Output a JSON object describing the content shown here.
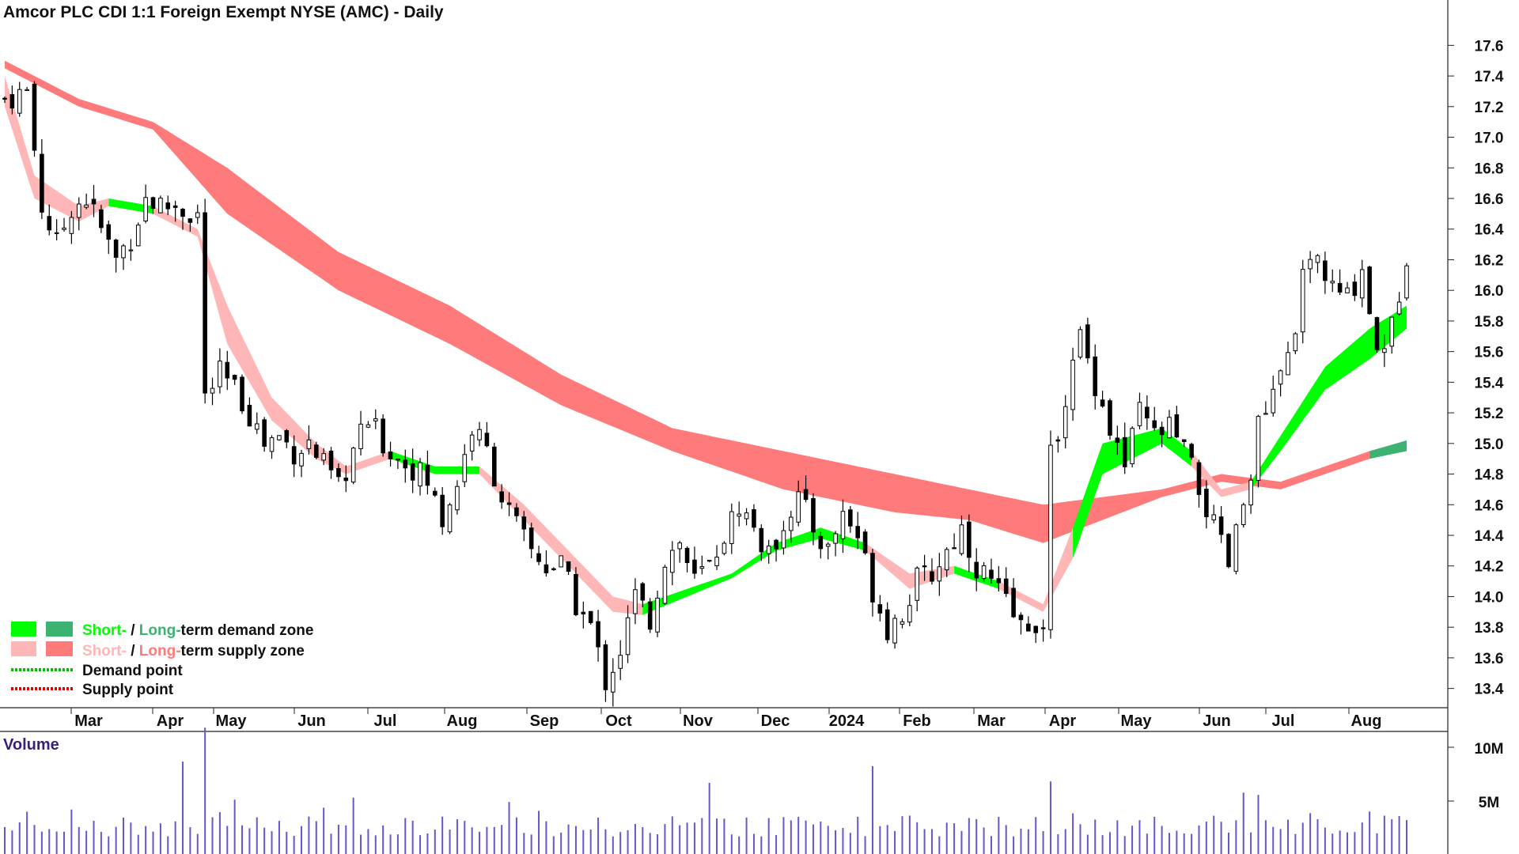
{
  "chart_data": {
    "type": "candlestick",
    "title": "Amcor PLC CDI 1:1 Foreign Exempt NYSE (AMC) - Daily",
    "price_axis": {
      "ticks": [
        "17.6",
        "17.4",
        "17.2",
        "17.0",
        "16.8",
        "16.6",
        "16.4",
        "16.2",
        "16.0",
        "15.8",
        "15.6",
        "15.4",
        "15.2",
        "15.0",
        "14.8",
        "14.6",
        "14.4",
        "14.2",
        "14.0",
        "13.8",
        "13.6",
        "13.4"
      ],
      "range": [
        13.3,
        17.7
      ]
    },
    "x_axis": {
      "labels": [
        "Mar",
        "Apr",
        "May",
        "Jun",
        "Jul",
        "Aug",
        "Sep",
        "Oct",
        "Nov",
        "Dec",
        "2024",
        "Feb",
        "Mar",
        "Apr",
        "May",
        "Jun",
        "Jul",
        "Aug"
      ]
    },
    "volume_axis": {
      "label": "Volume",
      "ticks": [
        "10M",
        "5M"
      ],
      "range": [
        0,
        11000000
      ]
    },
    "legend": [
      {
        "short": "Short-",
        "sep": " / ",
        "long": "Long-",
        "rest": "term demand zone",
        "short_color": "#00ff00",
        "long_color": "#3cb371"
      },
      {
        "short": "Short-",
        "sep": " / ",
        "long": "Long-",
        "rest": "term supply zone",
        "short_color": "#ffb6b6",
        "long_color": "#ff7a7a"
      },
      {
        "text": "Demand point",
        "color": "#00c000"
      },
      {
        "text": "Supply point",
        "color": "#e00000"
      }
    ],
    "close_path": [
      [
        0,
        17.25
      ],
      [
        3,
        17.3
      ],
      [
        5,
        16.55
      ],
      [
        7,
        16.3
      ],
      [
        9,
        16.55
      ],
      [
        11,
        16.6
      ],
      [
        13,
        16.4
      ],
      [
        15,
        16.2
      ],
      [
        17,
        16.35
      ],
      [
        19,
        16.6
      ],
      [
        21,
        16.55
      ],
      [
        23,
        16.55
      ],
      [
        25,
        16.5
      ],
      [
        26,
        16.5
      ],
      [
        27,
        15.3
      ],
      [
        29,
        15.45
      ],
      [
        31,
        15.35
      ],
      [
        33,
        15.2
      ],
      [
        35,
        15.0
      ],
      [
        37,
        15.05
      ],
      [
        39,
        14.95
      ],
      [
        41,
        15.0
      ],
      [
        43,
        14.85
      ],
      [
        45,
        14.7
      ],
      [
        47,
        14.95
      ],
      [
        49,
        15.15
      ],
      [
        51,
        15.0
      ],
      [
        53,
        14.9
      ],
      [
        55,
        14.85
      ],
      [
        57,
        14.75
      ],
      [
        59,
        14.5
      ],
      [
        61,
        14.75
      ],
      [
        63,
        15.1
      ],
      [
        65,
        14.95
      ],
      [
        67,
        14.65
      ],
      [
        69,
        14.45
      ],
      [
        71,
        14.3
      ],
      [
        73,
        14.2
      ],
      [
        75,
        14.2
      ],
      [
        77,
        13.95
      ],
      [
        79,
        13.8
      ],
      [
        81,
        13.45
      ],
      [
        83,
        13.65
      ],
      [
        85,
        14.0
      ],
      [
        87,
        13.85
      ],
      [
        89,
        14.25
      ],
      [
        91,
        14.35
      ],
      [
        93,
        14.1
      ],
      [
        95,
        14.2
      ],
      [
        97,
        14.4
      ],
      [
        99,
        14.6
      ],
      [
        101,
        14.45
      ],
      [
        103,
        14.25
      ],
      [
        105,
        14.5
      ],
      [
        107,
        14.65
      ],
      [
        109,
        14.45
      ],
      [
        111,
        14.3
      ],
      [
        113,
        14.55
      ],
      [
        115,
        14.4
      ],
      [
        117,
        14.05
      ],
      [
        119,
        13.8
      ],
      [
        121,
        13.9
      ],
      [
        123,
        14.1
      ],
      [
        125,
        14.15
      ],
      [
        127,
        14.3
      ],
      [
        129,
        14.45
      ],
      [
        131,
        14.2
      ],
      [
        133,
        14.1
      ],
      [
        135,
        13.95
      ],
      [
        137,
        13.8
      ],
      [
        139,
        13.85
      ],
      [
        140,
        13.75
      ],
      [
        141,
        14.9
      ],
      [
        143,
        15.3
      ],
      [
        145,
        15.7
      ],
      [
        147,
        15.4
      ],
      [
        149,
        15.1
      ],
      [
        151,
        14.85
      ],
      [
        153,
        15.2
      ],
      [
        155,
        15.05
      ],
      [
        157,
        15.1
      ],
      [
        159,
        14.95
      ],
      [
        161,
        14.7
      ],
      [
        163,
        14.45
      ],
      [
        165,
        14.2
      ],
      [
        167,
        14.6
      ],
      [
        169,
        15.1
      ],
      [
        171,
        15.3
      ],
      [
        173,
        15.55
      ],
      [
        175,
        16.05
      ],
      [
        177,
        16.2
      ],
      [
        179,
        16.0
      ],
      [
        181,
        15.95
      ],
      [
        183,
        16.15
      ],
      [
        185,
        15.6
      ],
      [
        187,
        15.75
      ],
      [
        189,
        16.25
      ]
    ],
    "short_term_zone_path": [
      [
        0,
        17.4,
        17.2,
        "supply"
      ],
      [
        4,
        16.75,
        16.6,
        "supply"
      ],
      [
        10,
        16.55,
        16.45,
        "supply"
      ],
      [
        14,
        16.6,
        16.55,
        "demand"
      ],
      [
        20,
        16.55,
        16.5,
        "supply"
      ],
      [
        26,
        16.4,
        16.35,
        "supply"
      ],
      [
        30,
        15.9,
        15.65,
        "supply"
      ],
      [
        36,
        15.3,
        15.15,
        "supply"
      ],
      [
        42,
        15.0,
        14.9,
        "supply"
      ],
      [
        46,
        14.85,
        14.8,
        "supply"
      ],
      [
        52,
        14.95,
        14.9,
        "demand"
      ],
      [
        58,
        14.85,
        14.8,
        "demand"
      ],
      [
        64,
        14.85,
        14.8,
        "supply"
      ],
      [
        70,
        14.6,
        14.5,
        "supply"
      ],
      [
        76,
        14.3,
        14.2,
        "supply"
      ],
      [
        82,
        14.0,
        13.9,
        "supply"
      ],
      [
        86,
        13.95,
        13.88,
        "demand"
      ],
      [
        92,
        14.05,
        14.0,
        "demand"
      ],
      [
        98,
        14.15,
        14.12,
        "demand"
      ],
      [
        104,
        14.35,
        14.3,
        "demand"
      ],
      [
        110,
        14.45,
        14.38,
        "demand"
      ],
      [
        116,
        14.35,
        14.3,
        "supply"
      ],
      [
        122,
        14.15,
        14.05,
        "supply"
      ],
      [
        128,
        14.2,
        14.15,
        "demand"
      ],
      [
        134,
        14.1,
        14.05,
        "supply"
      ],
      [
        140,
        13.95,
        13.9,
        "supply"
      ],
      [
        144,
        14.45,
        14.25,
        "demand"
      ],
      [
        148,
        15.0,
        14.8,
        "demand"
      ],
      [
        152,
        15.05,
        14.9,
        "demand"
      ],
      [
        156,
        15.1,
        15.0,
        "demand"
      ],
      [
        160,
        14.95,
        14.85,
        "supply"
      ],
      [
        164,
        14.7,
        14.65,
        "supply"
      ],
      [
        168,
        14.75,
        14.7,
        "demand"
      ],
      [
        172,
        15.05,
        14.95,
        "demand"
      ],
      [
        178,
        15.5,
        15.35,
        "demand"
      ],
      [
        184,
        15.75,
        15.55,
        "demand"
      ],
      [
        189,
        15.9,
        15.75,
        "demand"
      ]
    ],
    "long_term_zone_path": [
      [
        0,
        17.5,
        17.45,
        "supply"
      ],
      [
        10,
        17.25,
        17.2,
        "supply"
      ],
      [
        20,
        17.1,
        17.05,
        "supply"
      ],
      [
        30,
        16.8,
        16.5,
        "supply"
      ],
      [
        45,
        16.25,
        16.0,
        "supply"
      ],
      [
        60,
        15.9,
        15.65,
        "supply"
      ],
      [
        75,
        15.45,
        15.25,
        "supply"
      ],
      [
        90,
        15.1,
        14.95,
        "supply"
      ],
      [
        105,
        14.95,
        14.7,
        "supply"
      ],
      [
        120,
        14.8,
        14.55,
        "supply"
      ],
      [
        130,
        14.7,
        14.5,
        "supply"
      ],
      [
        140,
        14.6,
        14.35,
        "supply"
      ],
      [
        148,
        14.65,
        14.5,
        "supply"
      ],
      [
        156,
        14.7,
        14.65,
        "supply"
      ],
      [
        164,
        14.8,
        14.75,
        "supply"
      ],
      [
        172,
        14.75,
        14.7,
        "supply"
      ],
      [
        178,
        14.85,
        14.8,
        "supply"
      ],
      [
        184,
        14.95,
        14.9,
        "demand"
      ],
      [
        189,
        15.02,
        14.95,
        "demand"
      ]
    ]
  }
}
